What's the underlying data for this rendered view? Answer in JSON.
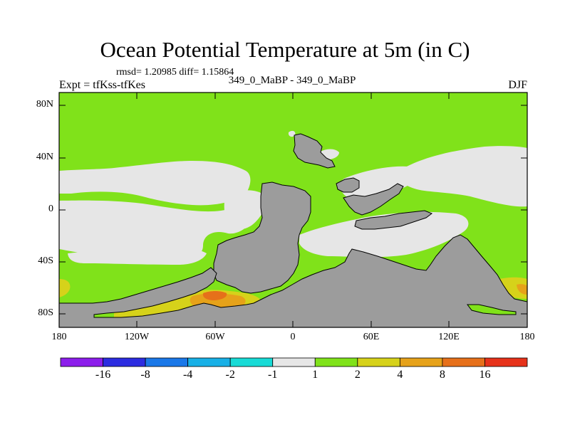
{
  "title": "Ocean Potential Temperature at 5m (in C)",
  "stats": "rmsd= 1.20985  diff= 1.15864",
  "case_label": "349_0_MaBP - 349_0_MaBP",
  "experiment": "Expt = tfKss-tfKes",
  "season": "DJF",
  "lat_labels": [
    "80N",
    "40N",
    "0",
    "40S",
    "80S"
  ],
  "lon_labels": [
    "180",
    "120W",
    "60W",
    "0",
    "60E",
    "120E",
    "180"
  ],
  "colorbar": {
    "labels": [
      "-16",
      "-8",
      "-4",
      "-2",
      "-1",
      "1",
      "2",
      "4",
      "8",
      "16"
    ],
    "colors": [
      "#8c1eeb",
      "#2c2ce0",
      "#1a78e8",
      "#18b0e6",
      "#18dbd6",
      "#e6e6e6",
      "#80e21a",
      "#d6d21a",
      "#e6a21a",
      "#e6701a",
      "#e6321a"
    ]
  },
  "colors": {
    "land": "#9c9c9c",
    "green": "#80e21a",
    "neutral": "#e6e6e6",
    "yellow": "#d6d21a",
    "orange": "#e6a21a",
    "dark_orange": "#e6701a"
  }
}
